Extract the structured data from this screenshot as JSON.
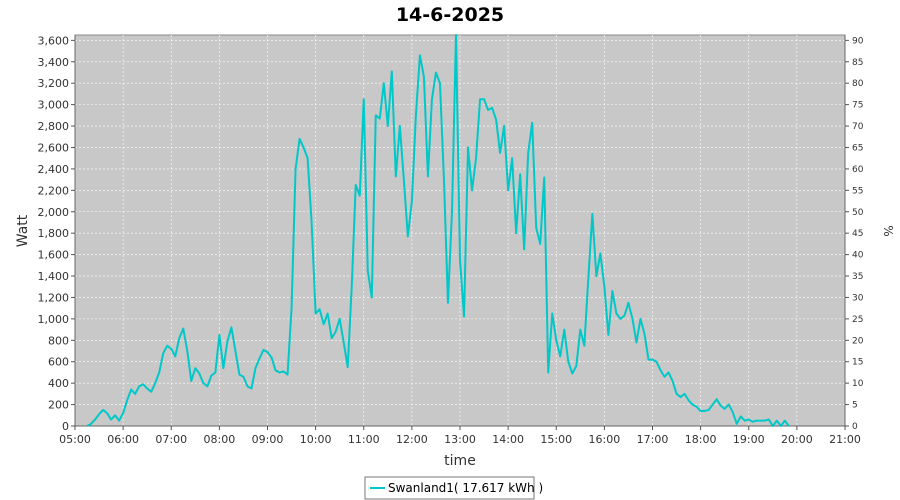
{
  "chart_data": {
    "type": "line",
    "title": "14-6-2025",
    "xlabel": "time",
    "ylabel": "Watt",
    "y2label": "%",
    "xlim": [
      5.0,
      21.0
    ],
    "ylim": [
      0,
      3650
    ],
    "y2lim": [
      0,
      91.25
    ],
    "grid": true,
    "legend_position": "bottom-center",
    "x_ticks": [
      "05:00",
      "06:00",
      "07:00",
      "08:00",
      "09:00",
      "10:00",
      "11:00",
      "12:00",
      "13:00",
      "14:00",
      "15:00",
      "16:00",
      "17:00",
      "18:00",
      "19:00",
      "20:00",
      "21:00"
    ],
    "y_ticks": [
      "0",
      "200",
      "400",
      "600",
      "800",
      "1,000",
      "1,200",
      "1,400",
      "1,600",
      "1,800",
      "2,000",
      "2,200",
      "2,400",
      "2,600",
      "2,800",
      "3,000",
      "3,200",
      "3,400",
      "3,600"
    ],
    "y2_ticks": [
      "0",
      "5",
      "10",
      "15",
      "20",
      "25",
      "30",
      "35",
      "40",
      "45",
      "50",
      "55",
      "60",
      "65",
      "70",
      "75",
      "80",
      "85",
      "90"
    ],
    "colors": {
      "plot_bg": "#c8c8c8",
      "grid": "#ffffff",
      "line": "#00c8c8"
    },
    "series": [
      {
        "name": "Swanland1( 17.617 kWh )",
        "color": "#00c8c8",
        "points": [
          [
            "05:15",
            0
          ],
          [
            "05:20",
            20
          ],
          [
            "05:25",
            60
          ],
          [
            "05:30",
            110
          ],
          [
            "05:35",
            150
          ],
          [
            "05:40",
            120
          ],
          [
            "05:45",
            60
          ],
          [
            "05:50",
            100
          ],
          [
            "05:55",
            50
          ],
          [
            "06:00",
            120
          ],
          [
            "06:05",
            240
          ],
          [
            "06:10",
            340
          ],
          [
            "06:15",
            300
          ],
          [
            "06:20",
            370
          ],
          [
            "06:25",
            390
          ],
          [
            "06:30",
            350
          ],
          [
            "06:35",
            320
          ],
          [
            "06:40",
            400
          ],
          [
            "06:45",
            500
          ],
          [
            "06:50",
            680
          ],
          [
            "06:55",
            750
          ],
          [
            "07:00",
            720
          ],
          [
            "07:05",
            650
          ],
          [
            "07:10",
            820
          ],
          [
            "07:15",
            910
          ],
          [
            "07:20",
            700
          ],
          [
            "07:25",
            420
          ],
          [
            "07:30",
            540
          ],
          [
            "07:35",
            490
          ],
          [
            "07:40",
            400
          ],
          [
            "07:45",
            370
          ],
          [
            "07:50",
            470
          ],
          [
            "07:55",
            500
          ],
          [
            "08:00",
            850
          ],
          [
            "08:05",
            540
          ],
          [
            "08:10",
            790
          ],
          [
            "08:15",
            920
          ],
          [
            "08:20",
            700
          ],
          [
            "08:25",
            480
          ],
          [
            "08:30",
            460
          ],
          [
            "08:35",
            370
          ],
          [
            "08:40",
            350
          ],
          [
            "08:45",
            540
          ],
          [
            "08:50",
            630
          ],
          [
            "08:55",
            710
          ],
          [
            "09:00",
            690
          ],
          [
            "09:05",
            640
          ],
          [
            "09:10",
            520
          ],
          [
            "09:15",
            500
          ],
          [
            "09:20",
            510
          ],
          [
            "09:25",
            480
          ],
          [
            "09:30",
            1100
          ],
          [
            "09:35",
            2400
          ],
          [
            "09:40",
            2680
          ],
          [
            "09:45",
            2600
          ],
          [
            "09:50",
            2500
          ],
          [
            "09:55",
            1900
          ],
          [
            "10:00",
            1050
          ],
          [
            "10:05",
            1090
          ],
          [
            "10:10",
            950
          ],
          [
            "10:15",
            1050
          ],
          [
            "10:20",
            820
          ],
          [
            "10:25",
            880
          ],
          [
            "10:30",
            1000
          ],
          [
            "10:35",
            780
          ],
          [
            "10:40",
            550
          ],
          [
            "10:45",
            1300
          ],
          [
            "10:50",
            2250
          ],
          [
            "10:55",
            2150
          ],
          [
            "11:00",
            3050
          ],
          [
            "11:05",
            1450
          ],
          [
            "11:10",
            1200
          ],
          [
            "11:15",
            2900
          ],
          [
            "11:20",
            2870
          ],
          [
            "11:25",
            3200
          ],
          [
            "11:30",
            2800
          ],
          [
            "11:35",
            3310
          ],
          [
            "11:40",
            2330
          ],
          [
            "11:45",
            2800
          ],
          [
            "11:50",
            2300
          ],
          [
            "11:55",
            1770
          ],
          [
            "12:00",
            2100
          ],
          [
            "12:05",
            2900
          ],
          [
            "12:10",
            3460
          ],
          [
            "12:15",
            3260
          ],
          [
            "12:20",
            2330
          ],
          [
            "12:25",
            3050
          ],
          [
            "12:30",
            3300
          ],
          [
            "12:35",
            3200
          ],
          [
            "12:40",
            2300
          ],
          [
            "12:45",
            1150
          ],
          [
            "12:50",
            2000
          ],
          [
            "12:55",
            3650
          ],
          [
            "13:00",
            1550
          ],
          [
            "13:05",
            1020
          ],
          [
            "13:10",
            2600
          ],
          [
            "13:15",
            2200
          ],
          [
            "13:20",
            2500
          ],
          [
            "13:25",
            3050
          ],
          [
            "13:30",
            3050
          ],
          [
            "13:35",
            2950
          ],
          [
            "13:40",
            2970
          ],
          [
            "13:45",
            2860
          ],
          [
            "13:50",
            2550
          ],
          [
            "13:55",
            2800
          ],
          [
            "14:00",
            2200
          ],
          [
            "14:05",
            2500
          ],
          [
            "14:10",
            1800
          ],
          [
            "14:15",
            2350
          ],
          [
            "14:20",
            1650
          ],
          [
            "14:25",
            2550
          ],
          [
            "14:30",
            2830
          ],
          [
            "14:35",
            1850
          ],
          [
            "14:40",
            1700
          ],
          [
            "14:45",
            2320
          ],
          [
            "14:50",
            500
          ],
          [
            "14:55",
            1050
          ],
          [
            "15:00",
            800
          ],
          [
            "15:05",
            650
          ],
          [
            "15:10",
            900
          ],
          [
            "15:15",
            600
          ],
          [
            "15:20",
            490
          ],
          [
            "15:25",
            560
          ],
          [
            "15:30",
            900
          ],
          [
            "15:35",
            750
          ],
          [
            "15:40",
            1380
          ],
          [
            "15:45",
            1980
          ],
          [
            "15:50",
            1400
          ],
          [
            "15:55",
            1610
          ],
          [
            "16:00",
            1300
          ],
          [
            "16:05",
            850
          ],
          [
            "16:10",
            1260
          ],
          [
            "16:15",
            1050
          ],
          [
            "16:20",
            1000
          ],
          [
            "16:25",
            1030
          ],
          [
            "16:30",
            1150
          ],
          [
            "16:35",
            1000
          ],
          [
            "16:40",
            780
          ],
          [
            "16:45",
            1000
          ],
          [
            "16:50",
            860
          ],
          [
            "16:55",
            620
          ],
          [
            "17:00",
            620
          ],
          [
            "17:05",
            600
          ],
          [
            "17:10",
            520
          ],
          [
            "17:15",
            460
          ],
          [
            "17:20",
            500
          ],
          [
            "17:25",
            420
          ],
          [
            "17:30",
            300
          ],
          [
            "17:35",
            270
          ],
          [
            "17:40",
            300
          ],
          [
            "17:45",
            240
          ],
          [
            "17:50",
            200
          ],
          [
            "17:55",
            180
          ],
          [
            "18:00",
            140
          ],
          [
            "18:05",
            140
          ],
          [
            "18:10",
            150
          ],
          [
            "18:15",
            200
          ],
          [
            "18:20",
            250
          ],
          [
            "18:25",
            190
          ],
          [
            "18:30",
            160
          ],
          [
            "18:35",
            200
          ],
          [
            "18:40",
            130
          ],
          [
            "18:45",
            20
          ],
          [
            "18:50",
            90
          ],
          [
            "18:55",
            50
          ],
          [
            "19:00",
            60
          ],
          [
            "19:05",
            40
          ],
          [
            "19:10",
            50
          ],
          [
            "19:15",
            50
          ],
          [
            "19:20",
            50
          ],
          [
            "19:25",
            60
          ],
          [
            "19:30",
            0
          ],
          [
            "19:35",
            50
          ],
          [
            "19:40",
            0
          ],
          [
            "19:45",
            50
          ],
          [
            "19:50",
            0
          ]
        ]
      }
    ]
  }
}
